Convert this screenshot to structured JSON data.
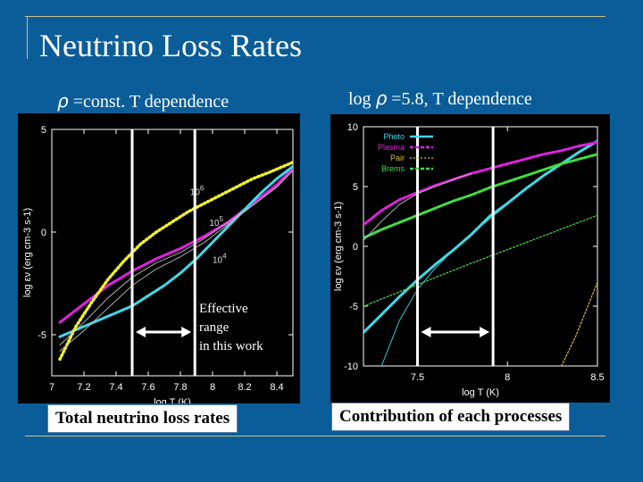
{
  "slide": {
    "title": "Neutrino Loss Rates",
    "left_heading": {
      "symbol": "ρ",
      "text": "=const. T dependence"
    },
    "right_heading": {
      "prefix": "log",
      "symbol": "ρ",
      "text": "=5.8, T dependence"
    },
    "left_caption": "Total neutrino loss rates",
    "right_caption": "Contribution of each processes",
    "annotation": [
      "Effective",
      "range",
      "in this work"
    ]
  },
  "chart_data": [
    {
      "type": "line",
      "xlabel": "log T (K)",
      "ylabel": "log εν (erg cm-3 s-1)",
      "xlim": [
        7.0,
        8.5
      ],
      "ylim": [
        -7.0,
        5.0
      ],
      "xticks": [
        "7",
        "7.2",
        "7.4",
        "7.6",
        "7.8",
        "8",
        "8.2",
        "8.4"
      ],
      "yticks": [
        "5",
        "0",
        "-5"
      ],
      "vlines": [
        7.5,
        7.89
      ],
      "curve_labels": [
        {
          "base": "10",
          "exp": "6",
          "x": 7.86,
          "y": 1.8
        },
        {
          "base": "10",
          "exp": "5",
          "x": 7.98,
          "y": 0.3
        },
        {
          "base": "10",
          "exp": "4",
          "x": 8.0,
          "y": -1.5
        }
      ],
      "series": [
        {
          "style": "thick",
          "color": "#e020e0",
          "x": [
            7.05,
            7.2,
            7.35,
            7.5,
            7.65,
            7.8,
            7.95,
            8.1,
            8.25,
            8.4,
            8.5
          ],
          "y": [
            -4.4,
            -3.5,
            -2.6,
            -1.9,
            -1.3,
            -0.8,
            -0.2,
            0.5,
            1.4,
            2.3,
            3.1
          ]
        },
        {
          "style": "thick",
          "color": "#40d8e8",
          "x": [
            7.05,
            7.2,
            7.35,
            7.5,
            7.6,
            7.7,
            7.8,
            7.9,
            8.0,
            8.1,
            8.2,
            8.3,
            8.4,
            8.5
          ],
          "y": [
            -5.1,
            -4.6,
            -4.1,
            -3.6,
            -3.1,
            -2.6,
            -2.0,
            -1.3,
            -0.5,
            0.3,
            1.1,
            1.9,
            2.6,
            3.2
          ]
        },
        {
          "style": "dotted",
          "color": "#f2f22a",
          "x": [
            7.05,
            7.15,
            7.25,
            7.35,
            7.45,
            7.55,
            7.65,
            7.75,
            7.85,
            7.95,
            8.05,
            8.15,
            8.25,
            8.35,
            8.5
          ],
          "y": [
            -6.2,
            -4.6,
            -3.4,
            -2.3,
            -1.4,
            -0.6,
            0.0,
            0.5,
            1.0,
            1.4,
            1.8,
            2.2,
            2.6,
            2.9,
            3.4
          ]
        },
        {
          "style": "thin",
          "color": "#c0c0c0",
          "x": [
            7.05,
            7.2,
            7.35,
            7.5,
            7.65,
            7.8,
            7.95,
            8.1,
            8.25,
            8.4,
            8.5
          ],
          "y": [
            -5.5,
            -4.4,
            -3.2,
            -2.2,
            -1.5,
            -1.0,
            -0.3,
            0.5,
            1.3,
            2.2,
            3.0
          ]
        },
        {
          "style": "thin",
          "color": "#c0c0c0",
          "x": [
            7.05,
            7.2,
            7.35,
            7.5,
            7.65,
            7.8,
            7.95,
            8.1,
            8.25,
            8.4,
            8.5
          ],
          "y": [
            -5.8,
            -4.8,
            -3.7,
            -2.6,
            -1.8,
            -1.2,
            -0.5,
            0.4,
            1.3,
            2.2,
            3.0
          ]
        }
      ]
    },
    {
      "type": "line",
      "xlabel": "log T (K)",
      "ylabel": "log εν (erg cm-3 s-1)",
      "xlim": [
        7.2,
        8.5
      ],
      "ylim": [
        -10,
        10
      ],
      "xticks": [
        "7.5",
        "8",
        "8.5"
      ],
      "yticks": [
        "10",
        "5",
        "0",
        "-5",
        "-10"
      ],
      "vlines": [
        7.5,
        7.92
      ],
      "legend": {
        "position": "top-left"
      },
      "series": [
        {
          "name": "Photo",
          "style": "thick",
          "color": "#40d8e8",
          "x": [
            7.2,
            7.3,
            7.4,
            7.5,
            7.6,
            7.7,
            7.8,
            7.9,
            8.0,
            8.1,
            8.2,
            8.3,
            8.4,
            8.5
          ],
          "y": [
            -7.2,
            -5.7,
            -4.2,
            -2.8,
            -1.5,
            -0.3,
            1.0,
            2.5,
            3.6,
            4.8,
            5.9,
            6.9,
            7.9,
            8.8
          ]
        },
        {
          "name": "Plasma",
          "style": "dashed",
          "color": "#e020e0",
          "x": [
            7.2,
            7.3,
            7.4,
            7.5,
            7.6,
            7.7,
            7.8,
            7.9,
            8.0,
            8.1,
            8.2,
            8.3,
            8.4,
            8.5
          ],
          "y": [
            1.8,
            3.0,
            3.9,
            4.5,
            5.1,
            5.6,
            6.1,
            6.5,
            6.9,
            7.3,
            7.7,
            8.0,
            8.4,
            8.7
          ]
        },
        {
          "name": "Pair",
          "style": "dotted",
          "color": "#d8c030",
          "x": [
            8.3,
            8.38,
            8.46,
            8.5
          ],
          "y": [
            -10.0,
            -7.5,
            -4.5,
            -3.0
          ]
        },
        {
          "name": "Brems",
          "style": "dashed",
          "color": "#40e040",
          "x": [
            7.2,
            7.3,
            7.4,
            7.5,
            7.6,
            7.7,
            7.8,
            7.9,
            8.0,
            8.1,
            8.2,
            8.3,
            8.4,
            8.5
          ],
          "y": [
            0.7,
            1.4,
            2.0,
            2.6,
            3.2,
            3.8,
            4.3,
            4.9,
            5.4,
            5.9,
            6.4,
            6.9,
            7.3,
            7.7
          ]
        },
        {
          "style": "dotted",
          "color": "#40e040",
          "x": [
            7.2,
            7.5,
            7.8,
            8.1,
            8.5
          ],
          "y": [
            -5.0,
            -3.2,
            -1.4,
            0.3,
            2.6
          ]
        },
        {
          "style": "thin",
          "color": "#40d8e8",
          "x": [
            7.3,
            7.4,
            7.5,
            7.6,
            7.7,
            7.8,
            7.9,
            8.0
          ],
          "y": [
            -10.0,
            -6.2,
            -3.6,
            -1.8,
            -0.3,
            1.0,
            2.3,
            3.5
          ]
        },
        {
          "style": "thin",
          "color": "#c0c0c0",
          "x": [
            7.2,
            7.3,
            7.4,
            7.5,
            7.6,
            7.7,
            7.8
          ],
          "y": [
            0.5,
            2.1,
            3.5,
            4.4,
            5.0,
            5.6,
            6.1
          ]
        }
      ]
    }
  ]
}
